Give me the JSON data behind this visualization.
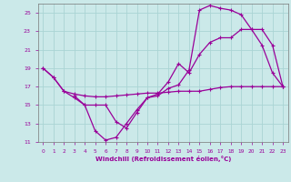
{
  "xlabel": "Windchill (Refroidissement éolien,°C)",
  "bg_color": "#cbe9e9",
  "line_color": "#990099",
  "grid_color": "#aad4d4",
  "xlim": [
    -0.5,
    23.5
  ],
  "ylim": [
    11,
    26
  ],
  "xticks": [
    0,
    1,
    2,
    3,
    4,
    5,
    6,
    7,
    8,
    9,
    10,
    11,
    12,
    13,
    14,
    15,
    16,
    17,
    18,
    19,
    20,
    21,
    22,
    23
  ],
  "yticks": [
    11,
    13,
    15,
    17,
    19,
    21,
    23,
    25
  ],
  "line1_x": [
    0,
    1,
    2,
    3,
    4,
    5,
    6,
    7,
    8,
    9,
    10,
    11,
    12,
    13,
    14,
    15,
    16,
    17,
    18,
    19,
    20,
    21,
    22,
    23
  ],
  "line1_y": [
    19,
    18,
    16.5,
    16.2,
    16.0,
    15.9,
    15.9,
    16.0,
    16.1,
    16.2,
    16.3,
    16.3,
    16.4,
    16.5,
    16.5,
    16.5,
    16.7,
    16.9,
    17.0,
    17.0,
    17.0,
    17.0,
    17.0,
    17.0
  ],
  "line2_x": [
    0,
    1,
    2,
    3,
    4,
    5,
    6,
    7,
    8,
    9,
    10,
    11,
    12,
    13,
    14,
    15,
    16,
    17,
    18,
    19,
    20,
    21,
    22,
    23
  ],
  "line2_y": [
    19,
    18,
    16.5,
    15.8,
    15.0,
    12.2,
    11.2,
    11.5,
    13.0,
    14.5,
    15.8,
    16.2,
    17.5,
    19.5,
    18.5,
    20.5,
    21.8,
    22.3,
    22.3,
    23.2,
    23.2,
    21.5,
    18.5,
    17.0
  ],
  "line3_x": [
    3,
    4,
    5,
    6,
    7,
    8,
    9,
    10,
    11,
    12,
    13,
    14,
    15,
    16,
    17,
    18,
    19,
    20,
    21,
    22,
    23
  ],
  "line3_y": [
    16.0,
    15.0,
    15.0,
    15.0,
    13.2,
    12.5,
    14.2,
    15.8,
    16.0,
    16.8,
    17.2,
    18.8,
    25.3,
    25.8,
    25.5,
    25.3,
    24.8,
    23.2,
    23.2,
    21.5,
    17.0
  ]
}
